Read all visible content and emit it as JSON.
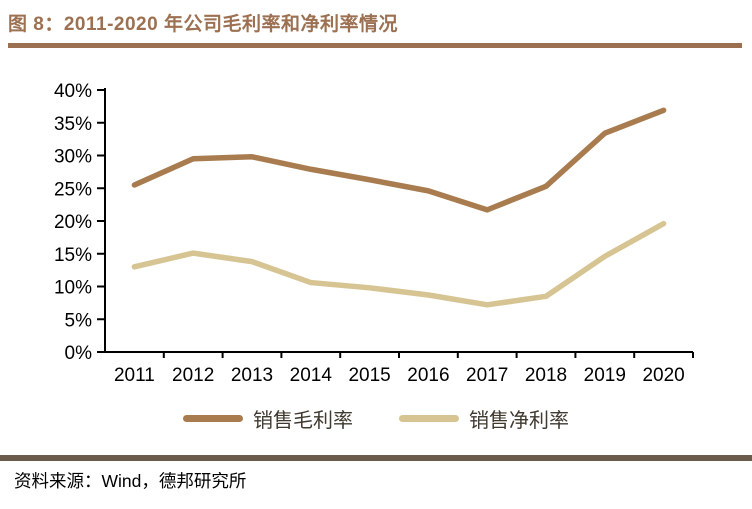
{
  "figure": {
    "title": "图 8：2011-2020 年公司毛利率和净利率情况",
    "source": "资料来源：Wind，德邦研究所"
  },
  "colors": {
    "title_text": "#9C7051",
    "title_rule": "#9B7050",
    "footer_rule": "#6B5B4B",
    "axis": "#000000",
    "legend_text": "#3F392F"
  },
  "chart_data": {
    "type": "line",
    "title": "2011-2020 年公司毛利率和净利率情况",
    "categories": [
      "2011",
      "2012",
      "2013",
      "2014",
      "2015",
      "2016",
      "2017",
      "2018",
      "2019",
      "2020"
    ],
    "series": [
      {
        "name": "销售毛利率",
        "color": "#A97C50",
        "values": [
          25.5,
          29.5,
          29.8,
          27.9,
          26.3,
          24.6,
          21.7,
          25.3,
          33.4,
          36.9
        ]
      },
      {
        "name": "销售净利率",
        "color": "#D7C493",
        "values": [
          13.0,
          15.1,
          13.8,
          10.6,
          9.8,
          8.7,
          7.2,
          8.5,
          14.6,
          19.6
        ]
      }
    ],
    "xlabel": "",
    "ylabel": "",
    "ylim": [
      0,
      40
    ],
    "y_tick_labels": [
      "0%",
      "5%",
      "10%",
      "15%",
      "20%",
      "25%",
      "30%",
      "35%",
      "40%"
    ],
    "grid": false,
    "legend_position": "bottom"
  }
}
